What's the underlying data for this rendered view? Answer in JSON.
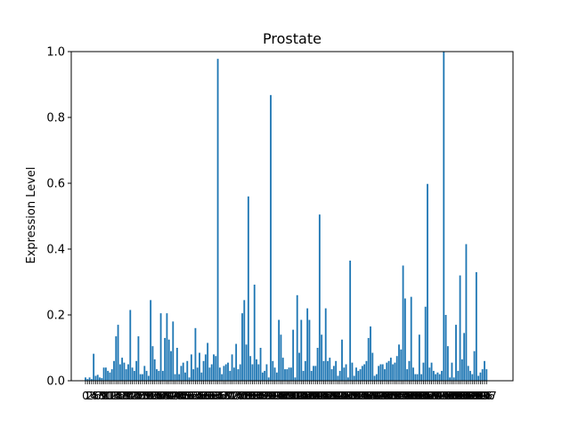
{
  "chart_data": {
    "type": "bar",
    "title": "Prostate",
    "xlabel": "",
    "ylabel": "Expression Level",
    "ylim": [
      0,
      1.0
    ],
    "yticks": [
      "0.0",
      "0.2",
      "0.4",
      "0.6",
      "0.8",
      "1.0"
    ],
    "xlim": [
      -7,
      210
    ],
    "color": "#1f77b4",
    "grid": false,
    "legend": "none",
    "note_x_tick_labels": "x tick labels are integer bar indices 0..200, heavily overlapping and unreadable",
    "values": [
      0.01,
      0.005,
      0.01,
      0.005,
      0.082,
      0.015,
      0.018,
      0.01,
      0.008,
      0.04,
      0.04,
      0.03,
      0.025,
      0.035,
      0.06,
      0.135,
      0.17,
      0.05,
      0.07,
      0.055,
      0.035,
      0.05,
      0.215,
      0.04,
      0.03,
      0.06,
      0.135,
      0.02,
      0.02,
      0.045,
      0.03,
      0.015,
      0.245,
      0.105,
      0.065,
      0.035,
      0.03,
      0.205,
      0.03,
      0.13,
      0.205,
      0.125,
      0.09,
      0.18,
      0.02,
      0.1,
      0.02,
      0.045,
      0.055,
      0.025,
      0.06,
      0.01,
      0.08,
      0.035,
      0.16,
      0.04,
      0.085,
      0.025,
      0.06,
      0.08,
      0.115,
      0.04,
      0.05,
      0.08,
      0.075,
      0.978,
      0.04,
      0.02,
      0.045,
      0.05,
      0.055,
      0.03,
      0.08,
      0.04,
      0.112,
      0.035,
      0.05,
      0.205,
      0.245,
      0.11,
      0.56,
      0.075,
      0.05,
      0.292,
      0.065,
      0.05,
      0.1,
      0.025,
      0.03,
      0.05,
      0.01,
      0.868,
      0.06,
      0.04,
      0.025,
      0.185,
      0.14,
      0.07,
      0.035,
      0.035,
      0.04,
      0.04,
      0.155,
      0.01,
      0.26,
      0.085,
      0.185,
      0.03,
      0.06,
      0.22,
      0.185,
      0.03,
      0.045,
      0.045,
      0.1,
      0.505,
      0.14,
      0.06,
      0.22,
      0.06,
      0.07,
      0.035,
      0.045,
      0.06,
      0.015,
      0.03,
      0.125,
      0.04,
      0.05,
      0.01,
      0.365,
      0.055,
      0.015,
      0.04,
      0.03,
      0.035,
      0.045,
      0.05,
      0.06,
      0.13,
      0.165,
      0.085,
      0.015,
      0.02,
      0.045,
      0.05,
      0.05,
      0.035,
      0.055,
      0.06,
      0.07,
      0.05,
      0.055,
      0.075,
      0.11,
      0.095,
      0.35,
      0.25,
      0.035,
      0.06,
      0.255,
      0.04,
      0.02,
      0.02,
      0.14,
      0.02,
      0.055,
      0.225,
      0.598,
      0.04,
      0.055,
      0.03,
      0.02,
      0.025,
      0.02,
      0.03,
      1.0,
      0.2,
      0.105,
      0.01,
      0.055,
      0.01,
      0.17,
      0.03,
      0.32,
      0.065,
      0.145,
      0.415,
      0.045,
      0.03,
      0.02,
      0.09,
      0.33,
      0.015,
      0.025,
      0.035,
      0.06,
      0.035
    ]
  }
}
